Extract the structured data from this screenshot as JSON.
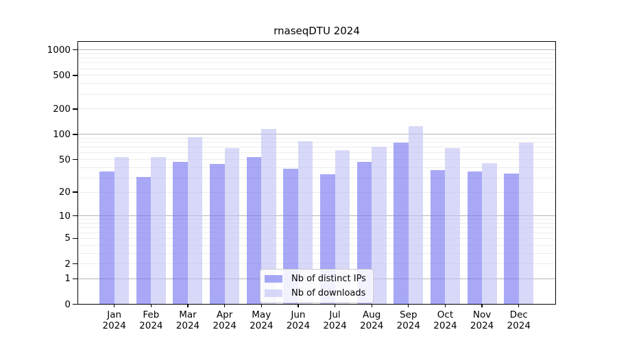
{
  "title": "rnaseqDTU 2024",
  "chart_data": {
    "type": "bar",
    "title": "rnaseqDTU 2024",
    "scale": "log10(1+x)",
    "grid": true,
    "legend_position": "lower center",
    "categories": [
      "Jan",
      "Feb",
      "Mar",
      "Apr",
      "May",
      "Jun",
      "Jul",
      "Aug",
      "Sep",
      "Oct",
      "Nov",
      "Dec"
    ],
    "year": "2024",
    "series": [
      {
        "name": "Nb of distinct IPs",
        "color": "rgba(117,117,242,0.63)",
        "values": [
          36,
          31,
          47,
          44,
          53,
          39,
          33,
          47,
          80,
          37,
          36,
          34
        ]
      },
      {
        "name": "Nb of downloads",
        "color": "rgba(193,193,244,0.63)",
        "values": [
          53,
          54,
          92,
          69,
          115,
          83,
          65,
          71,
          124,
          68,
          45,
          79
        ]
      }
    ],
    "yticks": [
      0,
      1,
      2,
      5,
      10,
      20,
      50,
      100,
      200,
      500,
      1000
    ],
    "ylim": [
      0,
      1270
    ],
    "colors": {
      "grid_major": "#b4b4b4",
      "grid_minor": "#ececec",
      "spine": "#000000",
      "background": "#ffffff"
    }
  }
}
